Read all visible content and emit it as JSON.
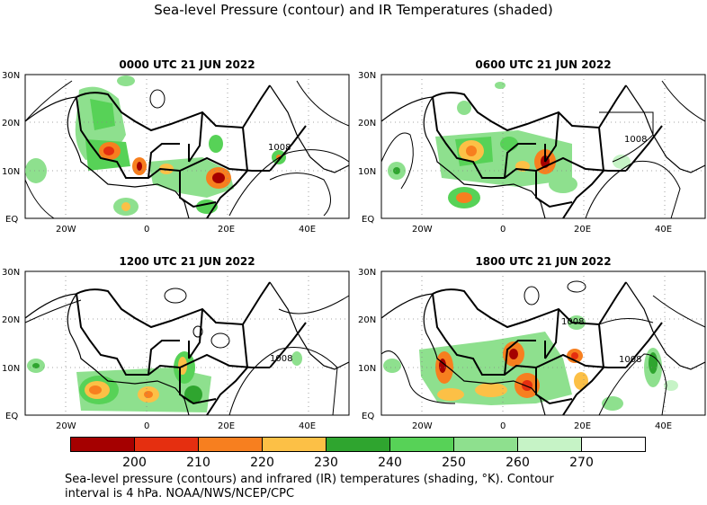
{
  "title": "Sea-level Pressure (contour) and IR Temperatures (shaded)",
  "panels": [
    {
      "title": "0000 UTC 21 JUN 2022",
      "contour_label": "1008"
    },
    {
      "title": "0600 UTC 21 JUN 2022",
      "contour_label": "1008"
    },
    {
      "title": "1200 UTC 21 JUN 2022",
      "contour_label": "1008"
    },
    {
      "title": "1800 UTC 21 JUN 2022",
      "contour_label": "1008",
      "contour_label_2": "1008"
    }
  ],
  "axes": {
    "lat_labels": [
      "30N",
      "20N",
      "10N",
      "EQ"
    ],
    "lon_labels": [
      "20W",
      "0",
      "20E",
      "40E"
    ]
  },
  "colorbar": {
    "ticks": [
      "200",
      "210",
      "220",
      "230",
      "240",
      "250",
      "260",
      "270"
    ],
    "colors": [
      "#a50000",
      "#e52f10",
      "#f77f1f",
      "#fcc046",
      "#2fa52f",
      "#57d257",
      "#8ee08e",
      "#c6f3c6",
      "#ffffff"
    ]
  },
  "caption": {
    "line1": "Sea-level pressure (contours) and infrared (IR) temperatures (shading, °K). Contour",
    "line2": "interval is 4 hPa. NOAA/NWS/NCEP/CPC"
  },
  "chart_data": {
    "type": "heatmap",
    "title": "Sea-level Pressure (contour) and IR Temperatures (shaded)",
    "units": "°K",
    "contour_interval_hPa": 4,
    "lon_range": [
      -30,
      50
    ],
    "lat_range": [
      0,
      30
    ],
    "color_levels": [
      200,
      210,
      220,
      230,
      240,
      250,
      260,
      270
    ],
    "panels": [
      "0000 UTC 21 JUN 2022",
      "0600 UTC 21 JUN 2022",
      "1200 UTC 21 JUN 2022",
      "1800 UTC 21 JUN 2022"
    ]
  }
}
